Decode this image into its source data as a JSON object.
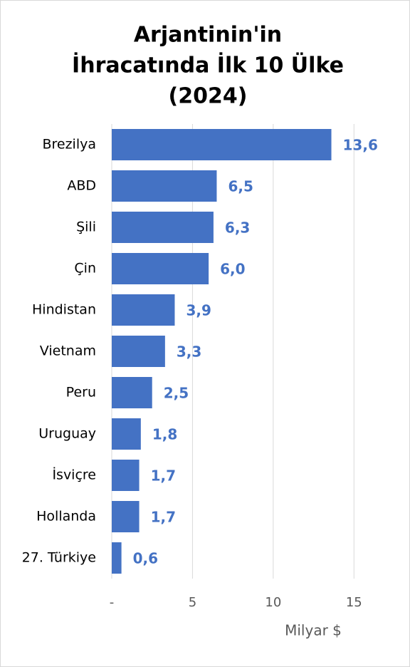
{
  "chart_data": {
    "type": "bar",
    "orientation": "horizontal",
    "title": [
      "Arjantinin'in",
      "İhracatında İlk 10 Ülke",
      "(2024)"
    ],
    "x_label": "Milyar $",
    "categories": [
      "Brezilya",
      "ABD",
      "Şili",
      "Çin",
      "Hindistan",
      "Vietnam",
      "Peru",
      "Uruguay",
      "İsviçre",
      "Hollanda",
      "27. Türkiye"
    ],
    "values": [
      13.6,
      6.5,
      6.3,
      6.0,
      3.9,
      3.3,
      2.5,
      1.8,
      1.7,
      1.7,
      0.6
    ],
    "value_labels": [
      "13,6",
      "6,5",
      "6,3",
      "6,0",
      "3,9",
      "3,3",
      "2,5",
      "1,8",
      "1,7",
      "1,7",
      "0,6"
    ],
    "color": "#4472c4",
    "xlim": [
      0,
      17.5
    ],
    "xticks": [
      {
        "value": 0,
        "label": "-"
      },
      5,
      10,
      15
    ],
    "grid": true
  }
}
